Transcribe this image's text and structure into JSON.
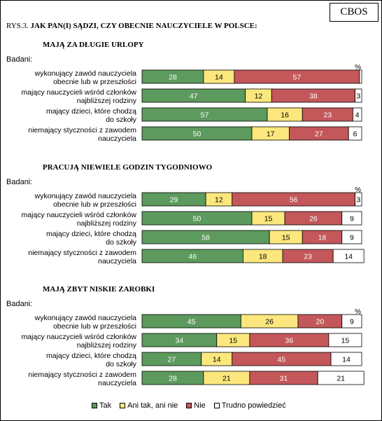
{
  "source_logo": "CBOS",
  "figure": {
    "number": "RYS.3.",
    "question": "JAK PAN(I) SĄDZI, CZY OBECNIE NAUCZYCIELE W POLSCE:"
  },
  "colors": {
    "tak": "#5d9a5d",
    "ani": "#fbe77d",
    "nie": "#c3575a",
    "trudno": "#ffffff"
  },
  "legend": [
    {
      "key": "tak",
      "label": "Tak"
    },
    {
      "key": "ani",
      "label": "Ani tak, ani nie"
    },
    {
      "key": "nie",
      "label": "Nie"
    },
    {
      "key": "trudno",
      "label": "Trudno powiedzieć"
    }
  ],
  "chart_data": {
    "type": "bar",
    "orientation": "horizontal",
    "stacked": true,
    "unit": "%",
    "group_label": "Badani:",
    "categories": [
      "wykonujący zawód nauczyciela obecnie lub w przeszłości",
      "mający nauczycieli wśród członków najbliższej rodziny",
      "mający dzieci, które chodzą do szkoły",
      "niemający styczności z zawodem nauczyciela"
    ],
    "category_lines": [
      [
        "wykonujący zawód nauczyciela",
        "obecnie lub w przeszłości"
      ],
      [
        "mający nauczycieli wśród członków",
        "najbliższej rodziny"
      ],
      [
        "mający dzieci, które chodzą",
        "do szkoły"
      ],
      [
        "niemający styczności z zawodem",
        "nauczyciela"
      ]
    ],
    "panels": [
      {
        "title": "MAJĄ ZA DŁUGIE URLOPY",
        "series": [
          {
            "name": "Tak",
            "key": "tak",
            "values": [
              28,
              47,
              57,
              50
            ]
          },
          {
            "name": "Ani tak, ani nie",
            "key": "ani",
            "values": [
              14,
              12,
              16,
              17
            ]
          },
          {
            "name": "Nie",
            "key": "nie",
            "values": [
              57,
              38,
              23,
              27
            ]
          },
          {
            "name": "Trudno powiedzieć",
            "key": "trudno",
            "values": [
              1,
              3,
              4,
              6
            ]
          }
        ],
        "labels": [
          [
            "28",
            "14",
            "57",
            ""
          ],
          [
            "47",
            "12",
            "38",
            "3"
          ],
          [
            "57",
            "16",
            "23",
            "4"
          ],
          [
            "50",
            "17",
            "27",
            "6"
          ]
        ]
      },
      {
        "title": "PRACUJĄ NIEWIELE GODZIN TYGODNIOWO",
        "series": [
          {
            "name": "Tak",
            "key": "tak",
            "values": [
              29,
              50,
              58,
              46
            ]
          },
          {
            "name": "Ani tak, ani nie",
            "key": "ani",
            "values": [
              12,
              15,
              15,
              18
            ]
          },
          {
            "name": "Nie",
            "key": "nie",
            "values": [
              56,
              26,
              18,
              23
            ]
          },
          {
            "name": "Trudno powiedzieć",
            "key": "trudno",
            "values": [
              3,
              9,
              9,
              14
            ]
          }
        ],
        "labels": [
          [
            "29",
            "12",
            "56",
            "3"
          ],
          [
            "50",
            "15",
            "26",
            "9"
          ],
          [
            "58",
            "15",
            "18",
            "9"
          ],
          [
            "46",
            "18",
            "23",
            "14"
          ]
        ]
      },
      {
        "title": "MAJĄ ZBYT NISKIE ZAROBKI",
        "series": [
          {
            "name": "Tak",
            "key": "tak",
            "values": [
              45,
              34,
              27,
              28
            ]
          },
          {
            "name": "Ani tak, ani nie",
            "key": "ani",
            "values": [
              26,
              15,
              14,
              21
            ]
          },
          {
            "name": "Nie",
            "key": "nie",
            "values": [
              20,
              36,
              45,
              31
            ]
          },
          {
            "name": "Trudno powiedzieć",
            "key": "trudno",
            "values": [
              9,
              15,
              14,
              21
            ]
          }
        ],
        "labels": [
          [
            "45",
            "26",
            "20",
            "9"
          ],
          [
            "34",
            "15",
            "36",
            "15"
          ],
          [
            "27",
            "14",
            "45",
            "14"
          ],
          [
            "28",
            "21",
            "31",
            "21"
          ]
        ]
      }
    ]
  }
}
